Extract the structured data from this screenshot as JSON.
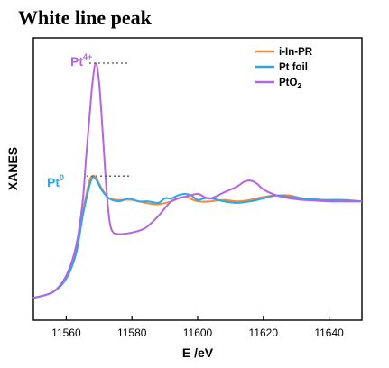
{
  "chart_data": {
    "type": "line",
    "title": "White line peak",
    "xlabel": "E /eV",
    "ylabel": "XANES",
    "xlim": [
      11550,
      11650
    ],
    "ylim": [
      0,
      1.9
    ],
    "xticks": [
      11560,
      11580,
      11600,
      11620,
      11640
    ],
    "yticks_shown": false,
    "legend_position": "top-right",
    "series": [
      {
        "name": "i-In-PR",
        "color": "#f28a3c",
        "points": [
          [
            11550,
            0.15
          ],
          [
            11556,
            0.19
          ],
          [
            11560,
            0.28
          ],
          [
            11563,
            0.45
          ],
          [
            11565,
            0.72
          ],
          [
            11567,
            0.93
          ],
          [
            11568,
            0.97
          ],
          [
            11569,
            0.96
          ],
          [
            11571,
            0.88
          ],
          [
            11573,
            0.82
          ],
          [
            11576,
            0.81
          ],
          [
            11580,
            0.81
          ],
          [
            11584,
            0.79
          ],
          [
            11588,
            0.78
          ],
          [
            11592,
            0.8
          ],
          [
            11596,
            0.83
          ],
          [
            11600,
            0.8
          ],
          [
            11604,
            0.8
          ],
          [
            11608,
            0.81
          ],
          [
            11612,
            0.8
          ],
          [
            11616,
            0.81
          ],
          [
            11620,
            0.83
          ],
          [
            11624,
            0.84
          ],
          [
            11628,
            0.84
          ],
          [
            11632,
            0.82
          ],
          [
            11638,
            0.81
          ],
          [
            11644,
            0.8
          ],
          [
            11650,
            0.8
          ]
        ]
      },
      {
        "name": "Pt foil",
        "color": "#2aa7e8",
        "points": [
          [
            11550,
            0.15
          ],
          [
            11556,
            0.19
          ],
          [
            11560,
            0.28
          ],
          [
            11563,
            0.45
          ],
          [
            11565,
            0.7
          ],
          [
            11567,
            0.9
          ],
          [
            11568,
            0.96
          ],
          [
            11569,
            0.95
          ],
          [
            11571,
            0.87
          ],
          [
            11573,
            0.82
          ],
          [
            11576,
            0.8
          ],
          [
            11579,
            0.82
          ],
          [
            11582,
            0.8
          ],
          [
            11585,
            0.8
          ],
          [
            11588,
            0.79
          ],
          [
            11590,
            0.82
          ],
          [
            11592,
            0.82
          ],
          [
            11594,
            0.84
          ],
          [
            11596,
            0.85
          ],
          [
            11598,
            0.84
          ],
          [
            11600,
            0.81
          ],
          [
            11602,
            0.82
          ],
          [
            11604,
            0.82
          ],
          [
            11608,
            0.8
          ],
          [
            11612,
            0.79
          ],
          [
            11616,
            0.8
          ],
          [
            11620,
            0.82
          ],
          [
            11624,
            0.84
          ],
          [
            11628,
            0.83
          ],
          [
            11632,
            0.82
          ],
          [
            11638,
            0.81
          ],
          [
            11644,
            0.81
          ],
          [
            11650,
            0.8
          ]
        ]
      },
      {
        "name": "PtO2",
        "color": "#b464e6",
        "points": [
          [
            11550,
            0.15
          ],
          [
            11556,
            0.19
          ],
          [
            11560,
            0.3
          ],
          [
            11563,
            0.5
          ],
          [
            11565,
            0.8
          ],
          [
            11566,
            1.08
          ],
          [
            11567,
            1.35
          ],
          [
            11568,
            1.6
          ],
          [
            11569,
            1.73
          ],
          [
            11570,
            1.6
          ],
          [
            11571,
            1.3
          ],
          [
            11572,
            0.95
          ],
          [
            11573,
            0.7
          ],
          [
            11574,
            0.6
          ],
          [
            11576,
            0.58
          ],
          [
            11580,
            0.59
          ],
          [
            11584,
            0.62
          ],
          [
            11588,
            0.7
          ],
          [
            11592,
            0.8
          ],
          [
            11596,
            0.83
          ],
          [
            11600,
            0.85
          ],
          [
            11602,
            0.83
          ],
          [
            11604,
            0.82
          ],
          [
            11608,
            0.86
          ],
          [
            11612,
            0.9
          ],
          [
            11614,
            0.93
          ],
          [
            11616,
            0.94
          ],
          [
            11618,
            0.92
          ],
          [
            11620,
            0.88
          ],
          [
            11624,
            0.84
          ],
          [
            11628,
            0.82
          ],
          [
            11632,
            0.81
          ],
          [
            11640,
            0.8
          ],
          [
            11644,
            0.8
          ],
          [
            11650,
            0.8
          ]
        ]
      }
    ],
    "annotations": [
      {
        "text_base": "Pt",
        "text_sup": "4+",
        "color": "#b464e6",
        "y": 1.73
      },
      {
        "text_base": "Pt",
        "text_sup": "0",
        "color": "#2aa7e8",
        "y": 0.97
      }
    ]
  }
}
